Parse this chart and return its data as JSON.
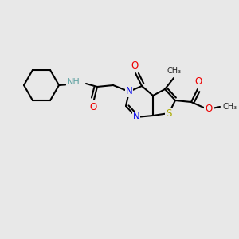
{
  "bg_color": "#e8e8e8",
  "atom_colors": {
    "N": "#0000ee",
    "O": "#ee0000",
    "S": "#aaaa00",
    "C": "#000000",
    "NH": "#5ca0a0"
  },
  "bond_color": "#000000",
  "bond_lw": 1.5,
  "font_size_atom": 8.5,
  "font_size_small": 7.5
}
